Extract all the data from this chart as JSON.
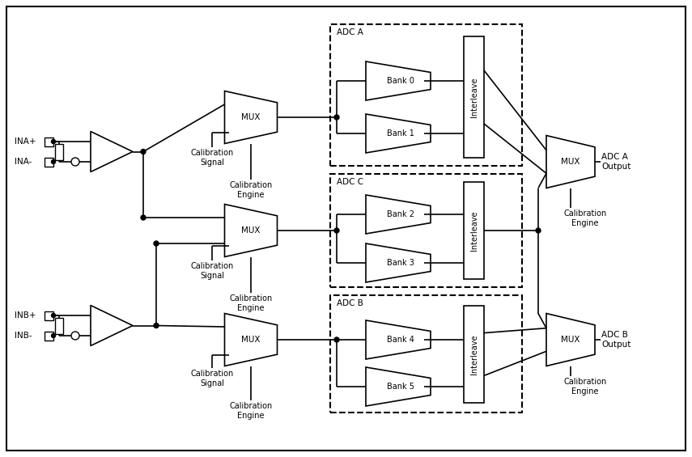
{
  "fig_width": 8.55,
  "fig_height": 5.65,
  "dpi": 100,
  "bg_color": "#ffffff",
  "line_color": "#000000",
  "ina_plus_label": "INA+",
  "ina_minus_label": "INA-",
  "inb_plus_label": "INB+",
  "inb_minus_label": "INB-",
  "adc_a_label": "ADC A",
  "adc_b_label": "ADC B",
  "adc_c_label": "ADC C",
  "adc_a_out": "ADC A\nOutput",
  "adc_b_out": "ADC B\nOutput",
  "mux_label": "MUX",
  "cal_sig_label": "Calibration\nSignal",
  "cal_eng_label": "Calibration\nEngine",
  "interleave_label": "Interleave",
  "bank_labels": [
    "Bank 0",
    "Bank 1",
    "Bank 2",
    "Bank 3",
    "Bank 4",
    "Bank 5"
  ],
  "fs": 7.5
}
